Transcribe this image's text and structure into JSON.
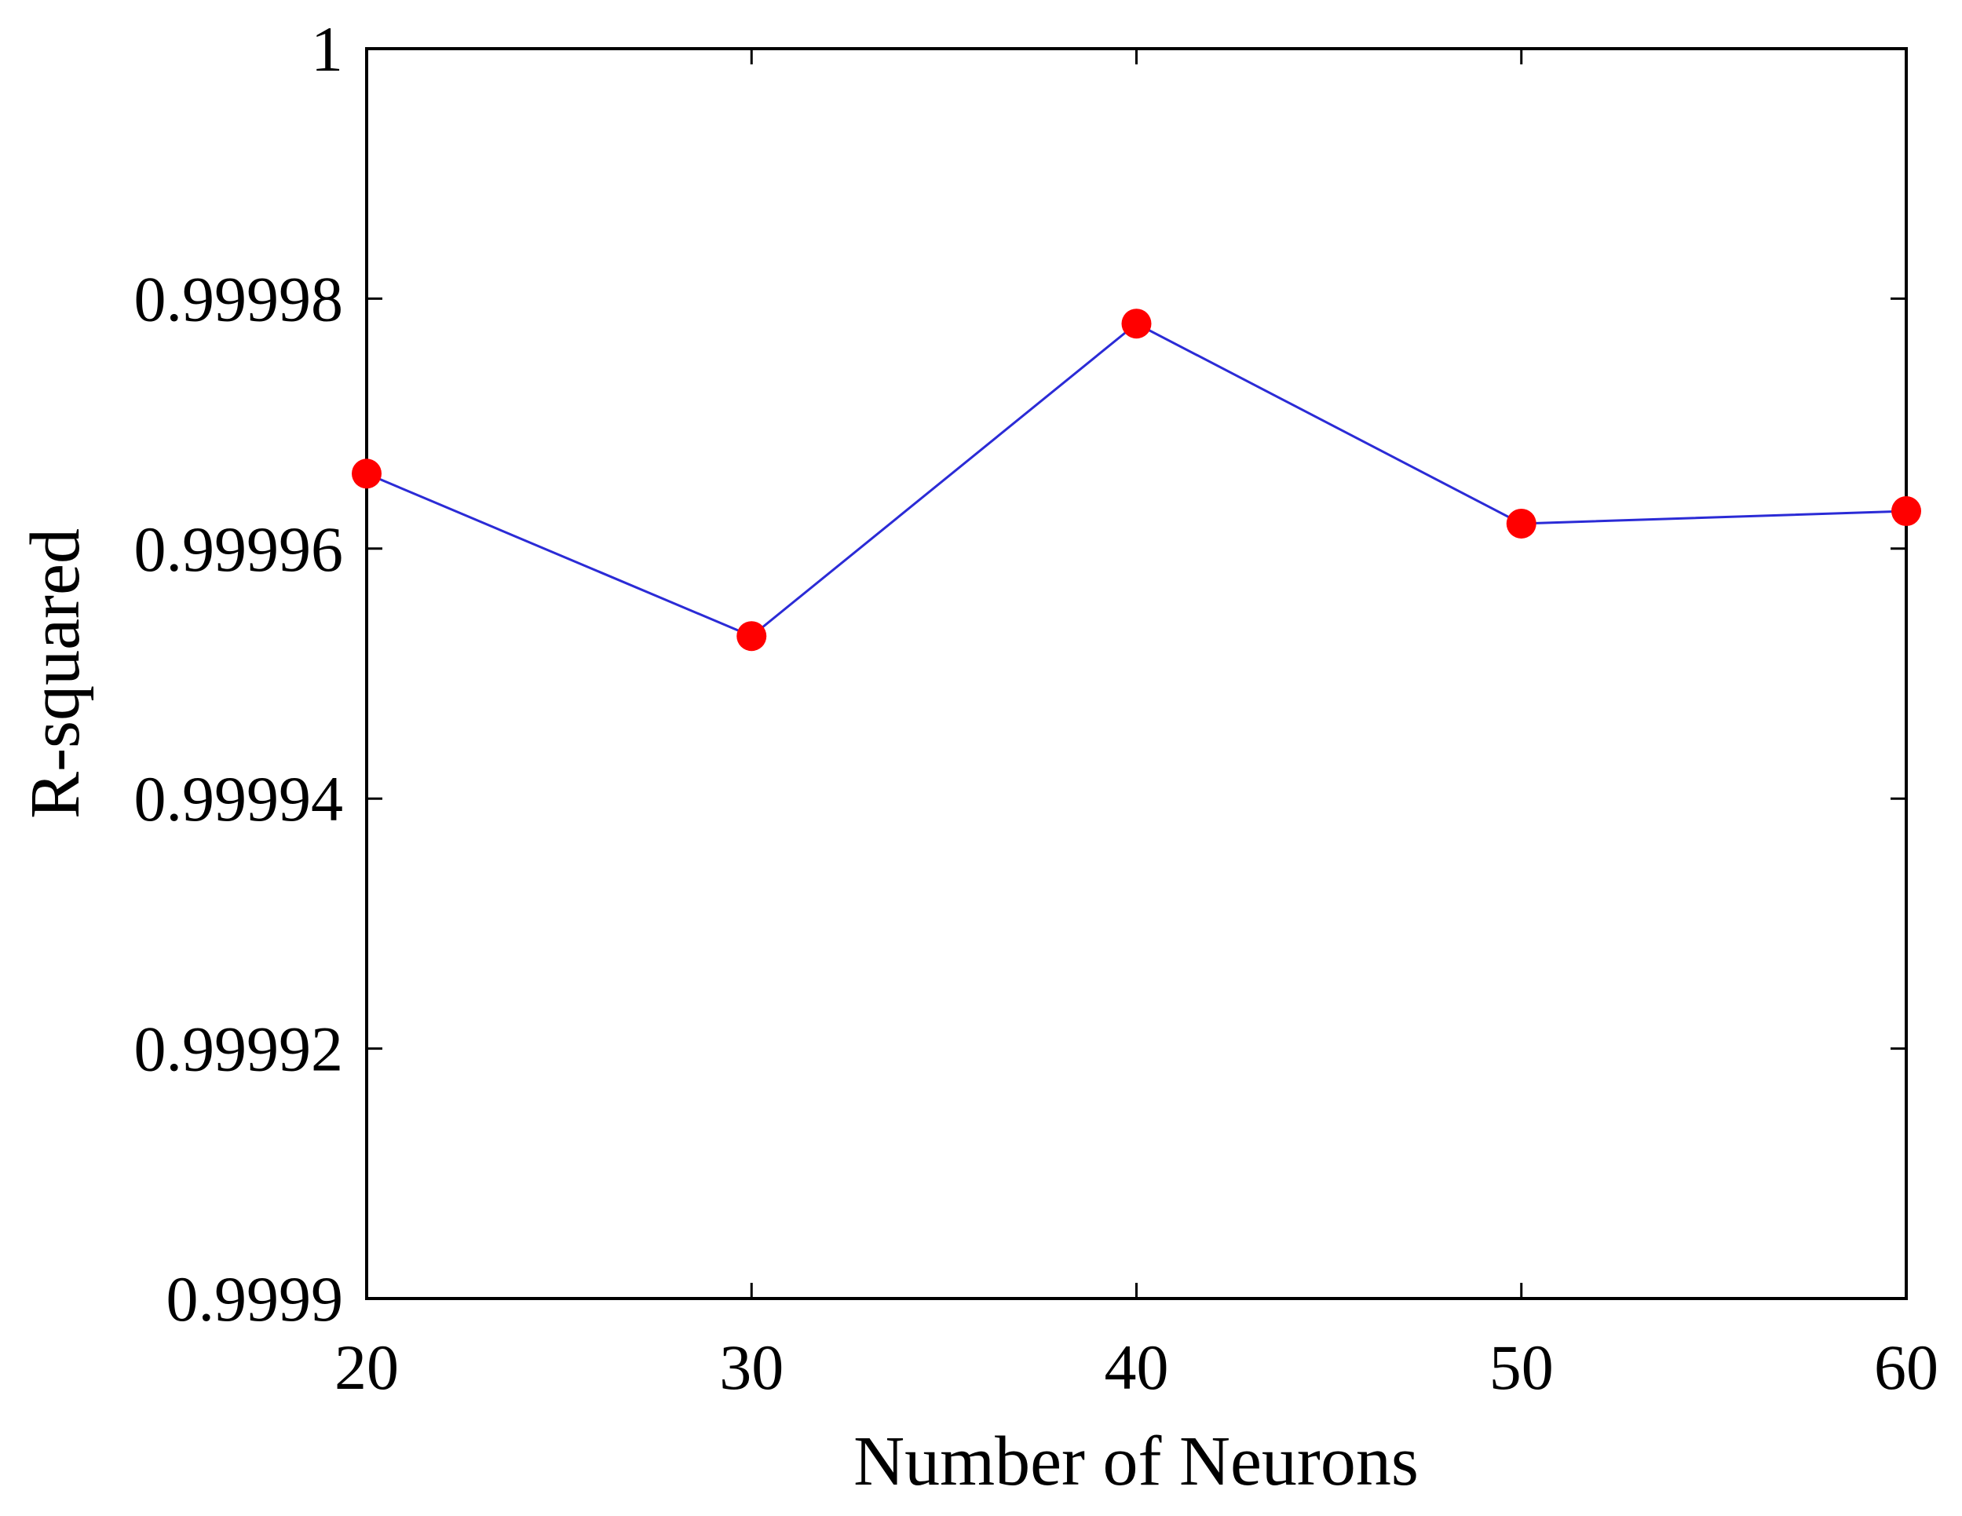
{
  "chart_data": {
    "type": "line",
    "title": "",
    "xlabel": "Number of Neurons",
    "ylabel": "R-squared",
    "x": [
      20,
      30,
      40,
      50,
      60
    ],
    "series": [
      {
        "values": [
          0.999966,
          0.999953,
          0.999978,
          0.999962,
          0.999963
        ]
      }
    ],
    "xlim": [
      20,
      60
    ],
    "ylim": [
      0.9999,
      1
    ],
    "xticks": [
      "20",
      "30",
      "40",
      "50",
      "60"
    ],
    "yticks": [
      "0.9999",
      "0.99992",
      "0.99994",
      "0.99996",
      "0.99998",
      "1"
    ],
    "grid": false,
    "legend": "none",
    "line_color": "#2b2bd6",
    "marker_color": "#ff0000"
  }
}
